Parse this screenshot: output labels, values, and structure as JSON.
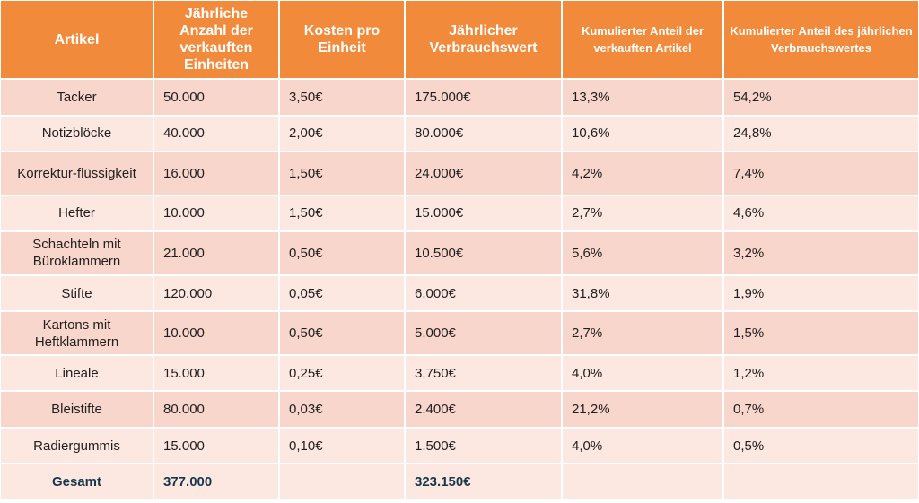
{
  "table": {
    "headers": [
      "Artikel",
      "Jährliche Anzahl der verkauften Einheiten",
      "Kosten pro Einheit",
      "Jährlicher Verbrauchswert",
      "Kumulierter Anteil der verkauften Artikel",
      "Kumulierter Anteil des jährlichen Verbrauchswertes"
    ],
    "rows": [
      [
        "Tacker",
        "50.000",
        "3,50€",
        "175.000€",
        "13,3%",
        "54,2%"
      ],
      [
        "Notizblöcke",
        "40.000",
        "2,00€",
        "80.000€",
        "10,6%",
        "24,8%"
      ],
      [
        "Korrektur-flüssigkeit",
        "16.000",
        "1,50€",
        "24.000€",
        "4,2%",
        "7,4%"
      ],
      [
        "Hefter",
        "10.000",
        "1,50€",
        "15.000€",
        "2,7%",
        "4,6%"
      ],
      [
        "Schachteln mit Büroklammern",
        "21.000",
        "0,50€",
        "10.500€",
        "5,6%",
        "3,2%"
      ],
      [
        "Stifte",
        "120.000",
        "0,05€",
        "6.000€",
        "31,8%",
        "1,9%"
      ],
      [
        "Kartons mit Heftklammern",
        "10.000",
        "0,50€",
        "5.000€",
        "2,7%",
        "1,5%"
      ],
      [
        "Lineale",
        "15.000",
        "0,25€",
        "3.750€",
        "4,0%",
        "1,2%"
      ],
      [
        "Bleistifte",
        "80.000",
        "0,03€",
        "2.400€",
        "21,2%",
        "0,7%"
      ],
      [
        "Radiergummis",
        "15.000",
        "0,10€",
        "1.500€",
        "4,0%",
        "0,5%"
      ]
    ],
    "total": [
      "Gesamt",
      "377.000",
      "",
      "323.150€",
      "",
      ""
    ]
  },
  "colors": {
    "header_bg": "#f28a3c",
    "row_odd": "#f9d6cc",
    "row_even": "#fce8e1",
    "total_text": "#18384a"
  }
}
